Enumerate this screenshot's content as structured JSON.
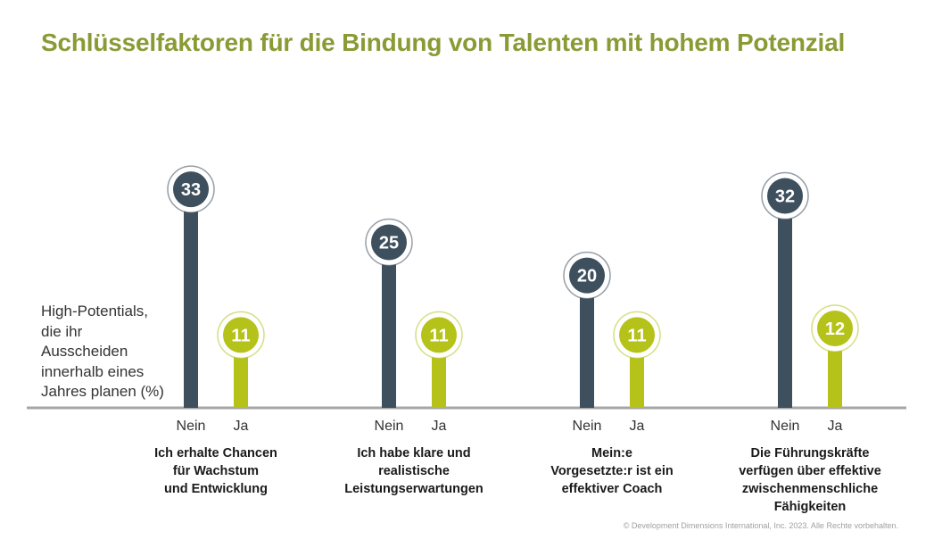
{
  "title": "Schlüsselfaktoren für die Bindung von Talenten mit hohem Potenzial",
  "y_label": "High-Potentials,\ndie ihr\nAusscheiden\ninnerhalb eines\nJahres planen (%)",
  "credit": "© Development Dimensions International, Inc. 2023. Alle Rechte vorbehalten.",
  "colors": {
    "title": "#8a9a34",
    "nein": "#3e4f5e",
    "ja": "#b5c21a",
    "axis": "#a6a6a6"
  },
  "chart_data": {
    "type": "bar",
    "categories": [
      "Ich erhalte Chancen\nfür Wachstum\nund Entwicklung",
      "Ich habe klare und\nrealistische\nLeistungserwartungen",
      "Mein:e\nVorgesetzte:r ist ein\neffektiver Coach",
      "Die Führungskräfte\nverfügen über effektive\nzwischenmenschliche\nFähigkeiten"
    ],
    "series": [
      {
        "name": "Nein",
        "values": [
          33,
          25,
          20,
          32
        ]
      },
      {
        "name": "Ja",
        "values": [
          11,
          11,
          11,
          12
        ]
      }
    ],
    "ylabel": "High-Potentials, die ihr Ausscheiden innerhalb eines Jahres planen (%)",
    "ylim": [
      0,
      36
    ],
    "grid": false,
    "legend": "none"
  }
}
